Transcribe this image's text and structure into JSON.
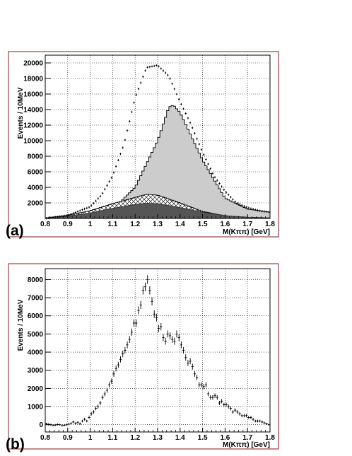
{
  "chart_data": [
    {
      "type": "bar",
      "panel_label": "(a)",
      "xlabel": "M(Kππ) [GeV]",
      "ylabel": "Events / 10MeV",
      "xlim": [
        0.8,
        1.8
      ],
      "ylim": [
        0,
        21000
      ],
      "xticks": [
        "0.8",
        "0.9",
        "1",
        "1.1",
        "1.2",
        "1.3",
        "1.4",
        "1.5",
        "1.6",
        "1.7",
        "1.8"
      ],
      "yticks": [
        "2000",
        "4000",
        "6000",
        "8000",
        "10000",
        "12000",
        "14000",
        "16000",
        "18000",
        "20000"
      ],
      "grid": true,
      "bin_width": 0.01,
      "series": [
        {
          "style": "light-gray filled histogram",
          "x": [
            0.8,
            1.0,
            1.1,
            1.2,
            1.3,
            1.35,
            1.37,
            1.4,
            1.5,
            1.6,
            1.7,
            1.8
          ],
          "values": [
            0,
            200,
            1200,
            4000,
            10000,
            14300,
            14600,
            13600,
            7500,
            2600,
            1200,
            800
          ]
        },
        {
          "style": "cross-hatched histogram",
          "x": [
            0.8,
            0.9,
            1.0,
            1.1,
            1.2,
            1.25,
            1.3,
            1.4,
            1.5,
            1.6,
            1.7,
            1.8
          ],
          "values": [
            50,
            400,
            1000,
            1900,
            2700,
            3100,
            3000,
            2000,
            900,
            350,
            150,
            80
          ]
        },
        {
          "style": "dark-gray filled histogram",
          "x": [
            0.8,
            0.9,
            1.0,
            1.1,
            1.2,
            1.25,
            1.3,
            1.4,
            1.5,
            1.6,
            1.7,
            1.8
          ],
          "values": [
            50,
            300,
            700,
            1300,
            1800,
            1950,
            1900,
            1400,
            800,
            350,
            150,
            80
          ]
        },
        {
          "style": "data points",
          "x": [
            0.8,
            0.9,
            1.0,
            1.05,
            1.1,
            1.15,
            1.2,
            1.25,
            1.3,
            1.35,
            1.4,
            1.45,
            1.5,
            1.55,
            1.6,
            1.65,
            1.7,
            1.75,
            1.8
          ],
          "values": [
            0,
            400,
            1500,
            3000,
            5500,
            9500,
            15500,
            19400,
            19700,
            18300,
            15000,
            12000,
            8500,
            5500,
            3500,
            2000,
            1400,
            1000,
            800
          ]
        }
      ]
    },
    {
      "type": "scatter",
      "panel_label": "(b)",
      "xlabel": "M(Kππ) [GeV]",
      "ylabel": "Events / 10MeV",
      "xlim": [
        0.8,
        1.8
      ],
      "ylim": [
        -400,
        8600
      ],
      "xticks": [
        "0.8",
        "0.9",
        "1",
        "1.1",
        "1.2",
        "1.3",
        "1.4",
        "1.5",
        "1.6",
        "1.7",
        "1.8"
      ],
      "yticks": [
        "0",
        "1000",
        "2000",
        "3000",
        "4000",
        "5000",
        "6000",
        "7000",
        "8000"
      ],
      "grid": true,
      "series": [
        {
          "style": "points with error bars",
          "x": [
            0.805,
            0.815,
            0.825,
            0.835,
            0.845,
            0.855,
            0.865,
            0.875,
            0.885,
            0.895,
            0.905,
            0.915,
            0.925,
            0.935,
            0.945,
            0.955,
            0.965,
            0.975,
            0.985,
            0.995,
            1.005,
            1.015,
            1.025,
            1.035,
            1.045,
            1.055,
            1.065,
            1.075,
            1.085,
            1.095,
            1.105,
            1.115,
            1.125,
            1.135,
            1.145,
            1.155,
            1.165,
            1.175,
            1.185,
            1.195,
            1.205,
            1.215,
            1.225,
            1.235,
            1.245,
            1.255,
            1.265,
            1.275,
            1.285,
            1.295,
            1.305,
            1.315,
            1.325,
            1.335,
            1.345,
            1.355,
            1.365,
            1.375,
            1.385,
            1.395,
            1.405,
            1.415,
            1.425,
            1.435,
            1.445,
            1.455,
            1.465,
            1.475,
            1.485,
            1.495,
            1.505,
            1.515,
            1.525,
            1.535,
            1.545,
            1.555,
            1.565,
            1.575,
            1.585,
            1.595,
            1.605,
            1.615,
            1.625,
            1.635,
            1.645,
            1.655,
            1.665,
            1.675,
            1.685,
            1.695,
            1.705,
            1.715,
            1.725,
            1.735,
            1.745,
            1.755,
            1.765,
            1.775,
            1.785,
            1.795
          ],
          "values": [
            50,
            20,
            0,
            -30,
            -20,
            10,
            0,
            -50,
            -30,
            0,
            30,
            80,
            150,
            80,
            120,
            60,
            200,
            300,
            200,
            400,
            600,
            700,
            900,
            1000,
            1200,
            1500,
            1700,
            1900,
            2200,
            2400,
            2800,
            3100,
            3300,
            3600,
            3900,
            4100,
            4400,
            4700,
            5100,
            5600,
            5600,
            6300,
            6600,
            7400,
            7600,
            8000,
            7400,
            6800,
            6100,
            5900,
            5300,
            5400,
            4800,
            4600,
            5000,
            4900,
            4700,
            4600,
            5000,
            4800,
            4400,
            4100,
            3700,
            3400,
            3500,
            3200,
            2800,
            2600,
            2200,
            2200,
            2100,
            2200,
            1700,
            1500,
            1500,
            1600,
            1500,
            1200,
            1300,
            1100,
            1100,
            1000,
            900,
            700,
            800,
            700,
            600,
            500,
            500,
            500,
            400,
            400,
            300,
            200,
            200,
            200,
            150,
            100,
            50,
            0
          ]
        }
      ]
    }
  ]
}
